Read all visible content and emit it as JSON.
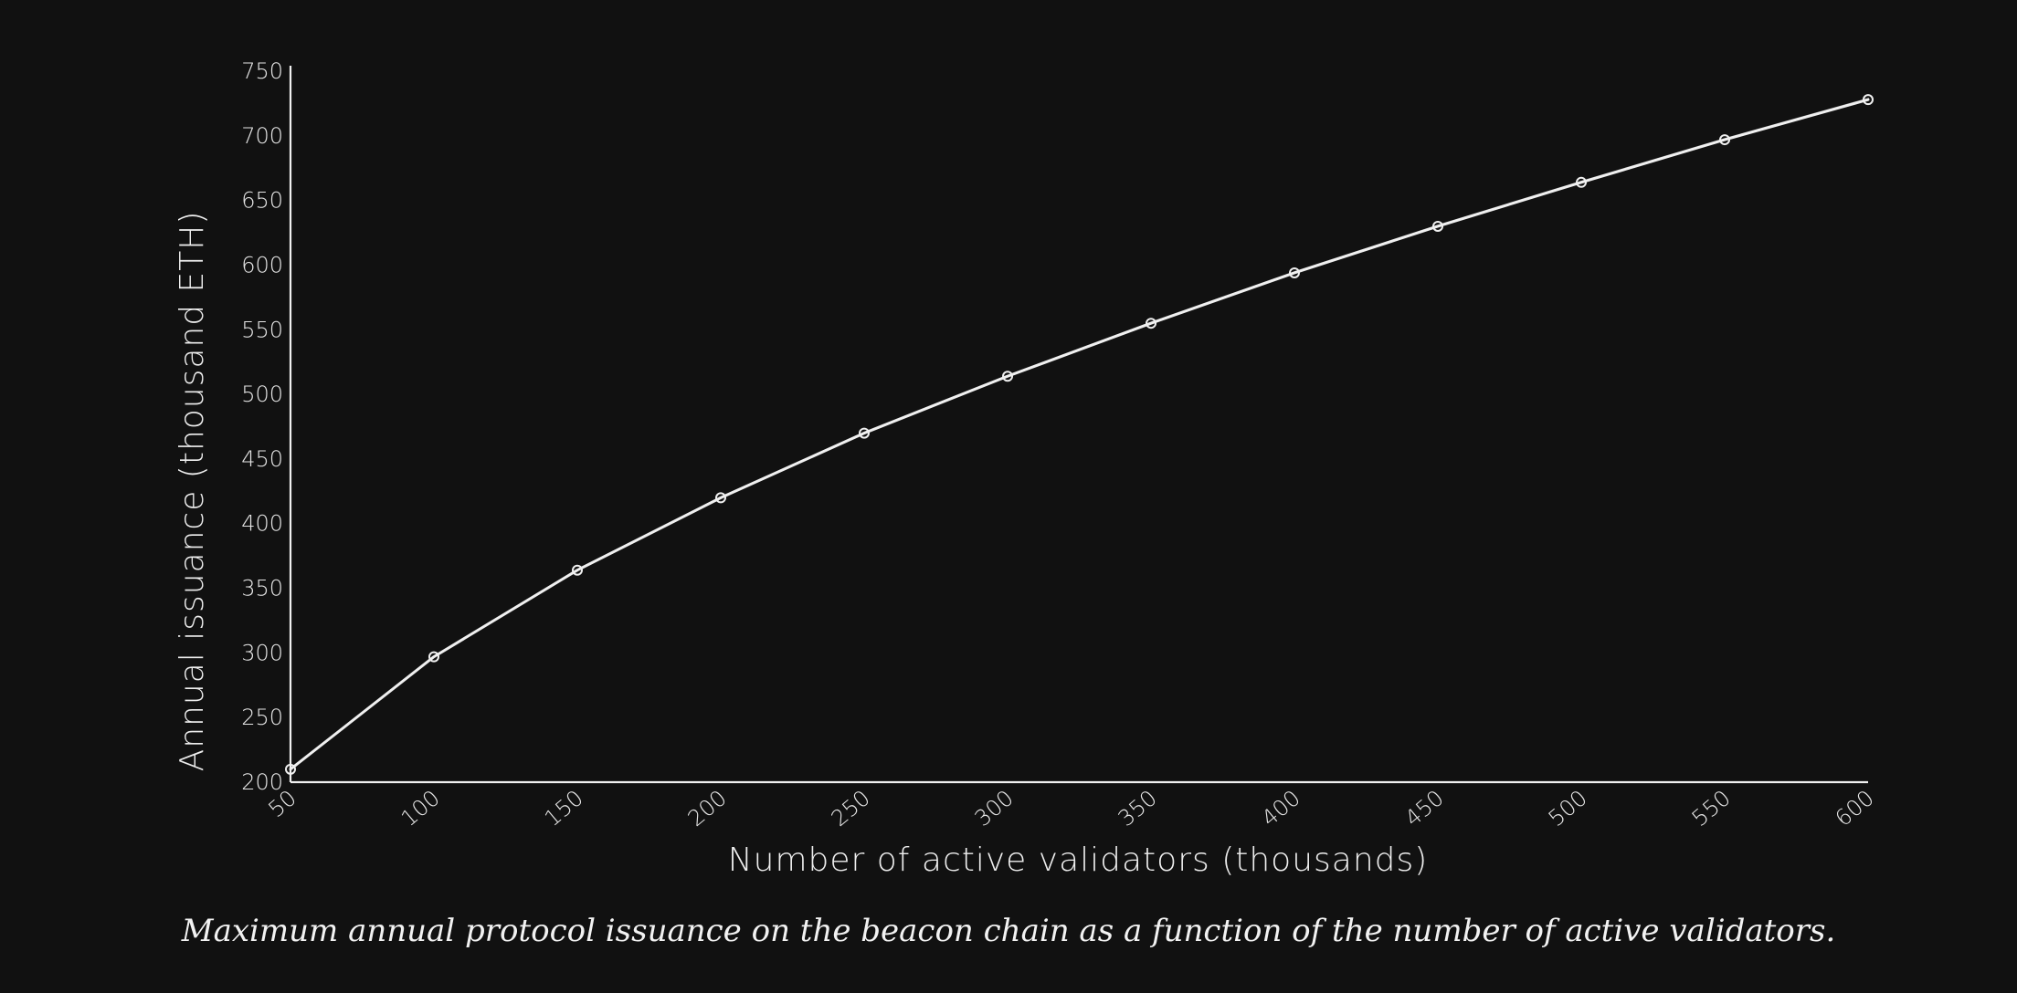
{
  "chart_data": {
    "type": "line",
    "xlabel": "Number of active validators (thousands)",
    "ylabel": "Annual issuance (thousand ETH)",
    "x": [
      50,
      100,
      150,
      200,
      250,
      300,
      350,
      400,
      450,
      500,
      550,
      600
    ],
    "series": [
      {
        "values": [
          210,
          297,
          364,
          420,
          470,
          514,
          555,
          594,
          630,
          664,
          697,
          728
        ]
      }
    ],
    "xlim": [
      50,
      600
    ],
    "ylim": [
      200,
      750
    ],
    "xticks": [
      "50",
      "100",
      "150",
      "200",
      "250",
      "300",
      "350",
      "400",
      "450",
      "500",
      "550",
      "600"
    ],
    "yticks": [
      "200",
      "250",
      "300",
      "350",
      "400",
      "450",
      "500",
      "550",
      "600",
      "650",
      "700",
      "750"
    ],
    "grid": false,
    "line_color": "#f0f0f0",
    "background": "#111111"
  },
  "caption": "Maximum annual protocol issuance on the beacon chain as a function of the number of active validators."
}
